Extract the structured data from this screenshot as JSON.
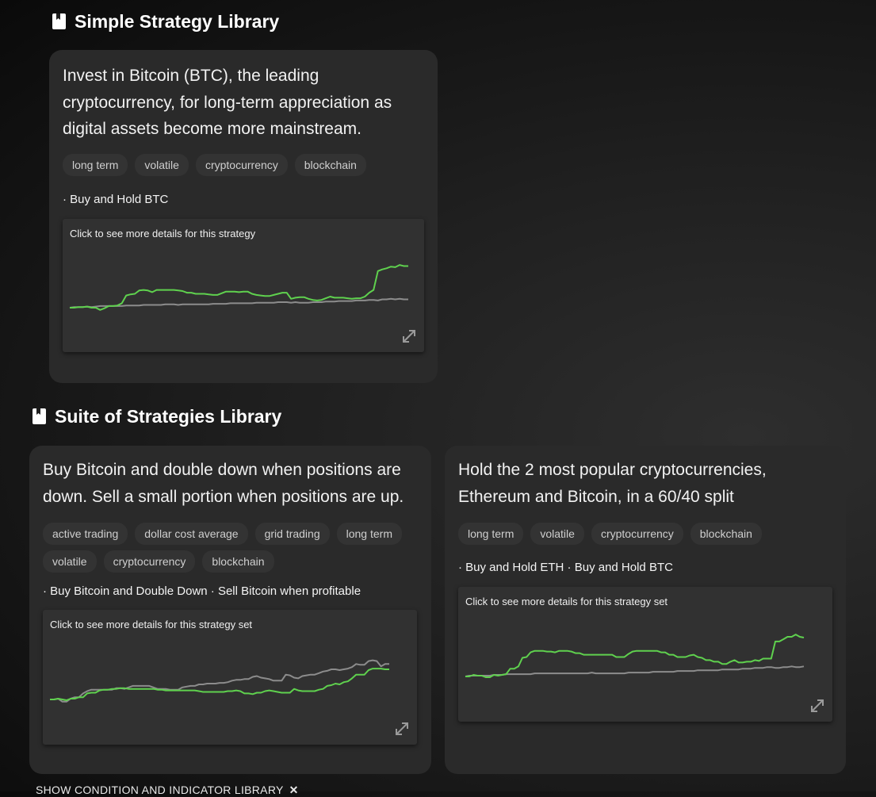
{
  "simple_section": {
    "title": "Simple Strategy Library",
    "icon": "bookmark-book-icon"
  },
  "suite_section": {
    "title": "Suite of Strategies Library",
    "icon": "bookmark-book-icon"
  },
  "cards": [
    {
      "description_lines": [
        "Invest in Bitcoin (BTC), the leading",
        "cryptocurrency, for long-term appreciation as",
        "digital assets become more mainstream."
      ],
      "tags": [
        "long term",
        "volatile",
        "cryptocurrency",
        "blockchain"
      ],
      "strategies": "· Buy and Hold BTC",
      "chart_hint": "Click to see more details for this strategy"
    },
    {
      "description_lines": [
        "Buy Bitcoin and double down when positions are",
        "down. Sell a small portion when positions are up."
      ],
      "tags": [
        "active trading",
        "dollar cost average",
        "grid trading",
        "long term",
        "volatile",
        "cryptocurrency",
        "blockchain"
      ],
      "strategies": "· Buy Bitcoin and Double Down · Sell Bitcoin when profitable",
      "chart_hint": "Click to see more details for this strategy set"
    },
    {
      "description_lines": [
        "Hold the 2 most popular cryptocurrencies,",
        "Ethereum and Bitcoin, in a 60/40 split"
      ],
      "tags": [
        "long term",
        "volatile",
        "cryptocurrency",
        "blockchain"
      ],
      "strategies": "· Buy and Hold ETH · Buy and Hold BTC",
      "chart_hint": "Click to see more details for this strategy set"
    }
  ],
  "footer": {
    "label": "SHOW CONDITION AND INDICATOR LIBRARY",
    "icon": "close-x-icon"
  },
  "colors": {
    "strategy_line": "#5fd14e",
    "benchmark_line": "#8c8c8c",
    "card_bg": "#2a2a2a",
    "chart_bg": "#313131"
  },
  "chart_data": [
    {
      "type": "line",
      "series": [
        {
          "values": [
            0.0,
            0.0,
            0.1,
            0.1,
            0.2,
            0.0,
            0.0,
            -0.4,
            -0.1,
            0.3,
            0.3,
            0.4,
            0.8,
            2.2,
            2.4,
            2.5,
            3.1,
            3.2,
            3.1,
            2.8,
            3.2,
            3.2,
            3.2,
            3.2,
            3.2,
            3.1,
            3.0,
            2.7,
            2.7,
            2.5,
            2.5,
            2.5,
            2.4,
            2.3,
            2.3,
            2.6,
            2.9,
            2.9,
            2.9,
            2.8,
            2.9,
            2.9,
            2.5,
            2.3,
            2.2,
            2.1,
            2.1,
            2.3,
            2.5,
            2.7,
            2.7,
            1.6,
            1.8,
            1.9,
            1.9,
            1.6,
            1.4,
            1.3,
            1.4,
            1.7,
            2.0,
            1.8,
            1.8,
            1.8,
            1.7,
            1.6,
            1.7,
            1.7,
            2.0,
            2.7,
            3.2,
            6.6,
            6.9,
            7.1,
            7.4,
            7.3,
            7.7,
            7.5,
            7.5
          ]
        },
        {
          "values": [
            0.0,
            0.1,
            0.1,
            0.1,
            0.2,
            0.1,
            0.2,
            0.3,
            0.3,
            0.3,
            0.3,
            0.3,
            0.3,
            0.4,
            0.4,
            0.4,
            0.4,
            0.5,
            0.5,
            0.5,
            0.5,
            0.5,
            0.6,
            0.6,
            0.6,
            0.5,
            0.6,
            0.6,
            0.6,
            0.6,
            0.6,
            0.6,
            0.6,
            0.7,
            0.7,
            0.7,
            0.7,
            0.8,
            0.8,
            0.8,
            0.8,
            0.8,
            0.8,
            0.9,
            0.9,
            0.9,
            0.9,
            0.9,
            1.0,
            1.0,
            1.0,
            0.9,
            1.0,
            0.9,
            0.9,
            0.9,
            1.0,
            1.0,
            1.0,
            1.1,
            1.1,
            1.1,
            1.2,
            1.2,
            1.2,
            1.2,
            1.3,
            1.3,
            1.3,
            1.4,
            1.4,
            1.3,
            1.5,
            1.5,
            1.6,
            1.5,
            1.6,
            1.5,
            1.5
          ]
        }
      ]
    },
    {
      "type": "line",
      "series": [
        {
          "values": [
            0.0,
            0.0,
            0.1,
            0.0,
            -0.1,
            0.1,
            0.1,
            0.3,
            0.3,
            0.8,
            0.9,
            0.9,
            1.2,
            1.3,
            1.3,
            1.4,
            1.4,
            1.5,
            1.5,
            1.4,
            1.4,
            1.4,
            1.4,
            1.4,
            1.4,
            1.4,
            1.3,
            1.3,
            1.2,
            1.2,
            1.2,
            1.2,
            1.2,
            1.2,
            1.2,
            1.2,
            1.1,
            1.0,
            1.0,
            1.0,
            1.0,
            1.0,
            1.0,
            1.1,
            1.1,
            1.2,
            1.1,
            0.8,
            0.8,
            0.7,
            0.9,
            0.9,
            1.1,
            1.2,
            1.1,
            1.0,
            0.9,
            0.9,
            0.9,
            1.4,
            1.2,
            1.1,
            1.1,
            1.1,
            1.1,
            1.3,
            1.4,
            1.8,
            1.9,
            2.1,
            2.0,
            2.3,
            2.4,
            2.8,
            3.3,
            3.3,
            3.3,
            3.9,
            4.1,
            4.1,
            4.1,
            4.0,
            4.0
          ]
        },
        {
          "values": [
            0.0,
            0.0,
            0.1,
            -0.3,
            -0.3,
            0.1,
            0.3,
            0.3,
            0.8,
            1.1,
            1.3,
            1.3,
            1.3,
            1.3,
            1.3,
            1.3,
            1.5,
            1.5,
            1.4,
            1.6,
            1.8,
            1.8,
            1.8,
            1.8,
            1.8,
            1.6,
            1.4,
            1.4,
            1.4,
            1.3,
            1.3,
            1.3,
            1.6,
            1.7,
            1.8,
            1.8,
            2.0,
            2.0,
            2.1,
            2.1,
            2.1,
            2.2,
            2.2,
            2.3,
            2.5,
            2.6,
            2.6,
            2.7,
            2.7,
            3.0,
            3.1,
            2.9,
            2.8,
            2.7,
            2.5,
            2.5,
            2.5,
            3.3,
            3.2,
            2.9,
            2.8,
            3.1,
            3.2,
            3.3,
            3.3,
            3.5,
            3.7,
            3.8,
            4.0,
            4.0,
            3.9,
            4.0,
            4.1,
            4.3,
            4.7,
            4.6,
            4.6,
            5.1,
            5.2,
            5.1,
            4.4,
            4.7,
            4.7
          ]
        }
      ]
    },
    {
      "type": "line",
      "series": [
        {
          "values": [
            0.0,
            0.0,
            0.2,
            0.1,
            0.1,
            -0.1,
            -0.1,
            0.2,
            0.1,
            0.2,
            0.3,
            1.0,
            1.0,
            1.3,
            2.4,
            2.5,
            3.1,
            3.3,
            3.3,
            3.3,
            3.2,
            3.2,
            3.1,
            3.3,
            3.3,
            3.3,
            3.2,
            3.0,
            3.0,
            2.8,
            2.8,
            2.8,
            2.8,
            2.8,
            2.8,
            2.8,
            2.8,
            2.5,
            2.5,
            2.5,
            2.9,
            3.2,
            3.3,
            3.3,
            3.3,
            3.3,
            3.3,
            3.3,
            3.1,
            3.1,
            2.8,
            2.8,
            2.5,
            2.5,
            2.5,
            2.7,
            2.8,
            2.5,
            2.4,
            2.1,
            2.1,
            1.9,
            1.9,
            1.6,
            1.6,
            1.9,
            2.1,
            1.8,
            1.8,
            1.9,
            1.9,
            2.1,
            2.0,
            2.3,
            2.3,
            2.3,
            4.5,
            4.5,
            4.8,
            5.1,
            5.1,
            5.4,
            5.1,
            5.0
          ]
        },
        {
          "values": [
            0.0,
            0.1,
            0.1,
            0.1,
            0.1,
            0.1,
            0.1,
            0.2,
            0.2,
            0.2,
            0.3,
            0.3,
            0.3,
            0.3,
            0.3,
            0.3,
            0.3,
            0.4,
            0.4,
            0.4,
            0.4,
            0.4,
            0.4,
            0.4,
            0.4,
            0.4,
            0.4,
            0.4,
            0.4,
            0.4,
            0.4,
            0.5,
            0.4,
            0.4,
            0.4,
            0.4,
            0.4,
            0.4,
            0.4,
            0.4,
            0.5,
            0.5,
            0.5,
            0.5,
            0.5,
            0.5,
            0.6,
            0.6,
            0.6,
            0.6,
            0.6,
            0.6,
            0.7,
            0.7,
            0.7,
            0.7,
            0.7,
            0.8,
            0.8,
            0.8,
            0.8,
            0.8,
            0.8,
            0.9,
            0.9,
            0.9,
            0.9,
            0.9,
            1.0,
            1.0,
            1.0,
            1.1,
            1.1,
            1.1,
            1.2,
            1.2,
            1.1,
            1.1,
            1.2,
            1.2,
            1.3,
            1.2,
            1.2,
            1.3
          ]
        }
      ]
    }
  ]
}
